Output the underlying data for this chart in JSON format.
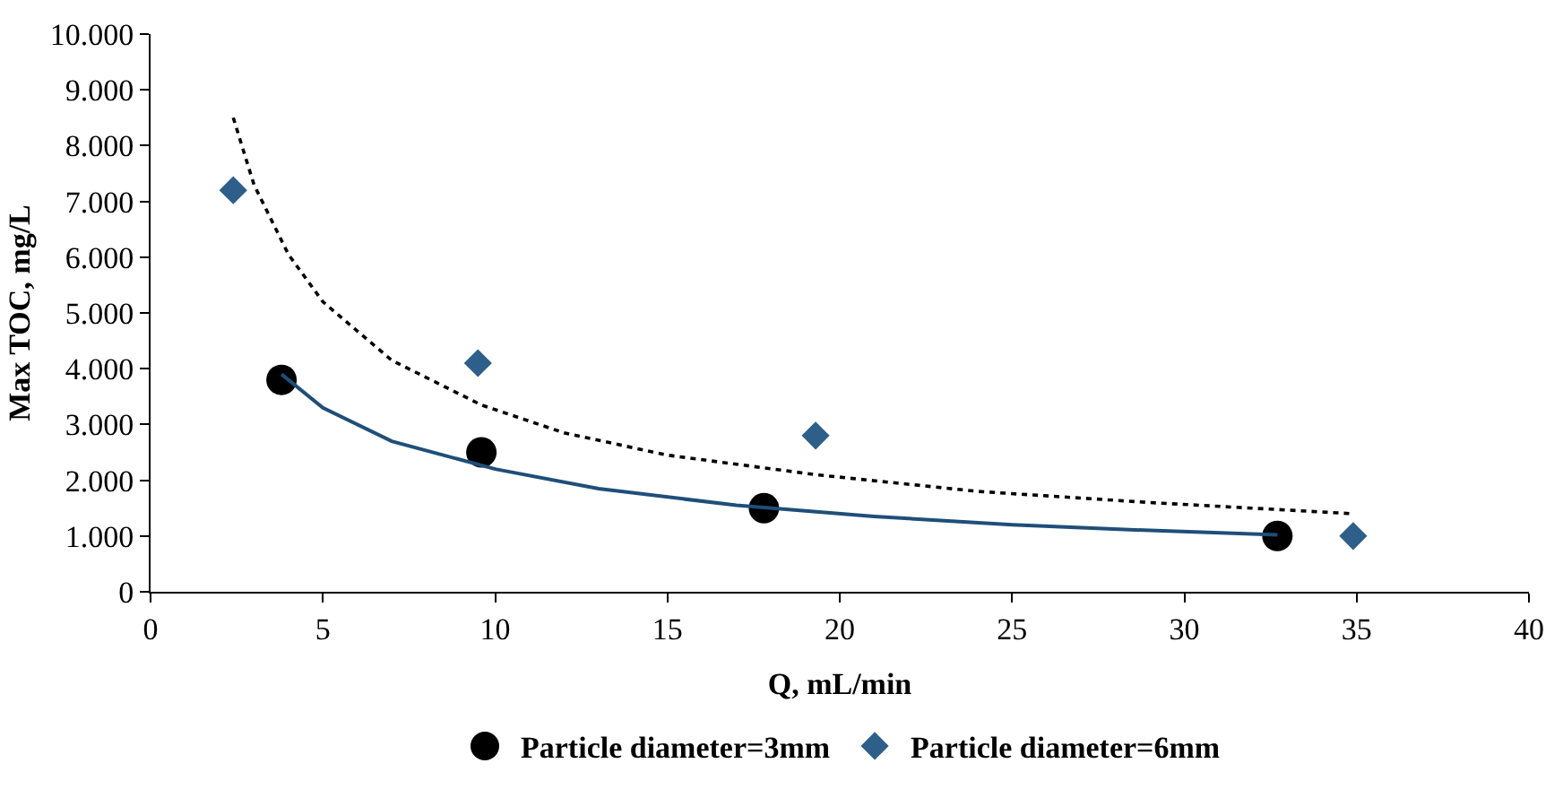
{
  "chart_data": {
    "type": "scatter",
    "xlabel": "Q, mL/min",
    "ylabel": "Max TOC, mg/L",
    "xlim": [
      0,
      40
    ],
    "xticks": [
      0,
      5,
      10,
      15,
      20,
      25,
      30,
      35,
      40
    ],
    "ylim": [
      0,
      10000
    ],
    "yticks": [
      0,
      {
        "value": 1000,
        "label": "1.000"
      },
      {
        "value": 2000,
        "label": "2.000"
      },
      {
        "value": 3000,
        "label": "3.000"
      },
      {
        "value": 4000,
        "label": "4.000"
      },
      {
        "value": 5000,
        "label": "5.000"
      },
      {
        "value": 6000,
        "label": "6.000"
      },
      {
        "value": 7000,
        "label": "7.000"
      },
      {
        "value": 8000,
        "label": "8.000"
      },
      {
        "value": 9000,
        "label": "9.000"
      },
      {
        "value": 10000,
        "label": "10.000"
      }
    ],
    "legend": "bottom",
    "series": [
      {
        "name": "Particle diameter=3mm",
        "marker": "circle",
        "color": "#000000",
        "x": [
          3.8,
          9.6,
          17.8,
          32.7
        ],
        "values": [
          3800,
          2500,
          1500,
          1000
        ]
      },
      {
        "name": "Particle diameter=6mm",
        "marker": "diamond",
        "color": "#2e5f8a",
        "x": [
          2.4,
          9.5,
          19.3,
          34.9
        ],
        "values": [
          7200,
          4100,
          2800,
          1000
        ]
      },
      {
        "type": "line",
        "line_style": "solid",
        "color": "#1f4e79",
        "x": [
          3.8,
          5,
          7,
          10,
          13,
          17,
          21,
          25,
          29,
          32.7
        ],
        "values": [
          3900,
          3300,
          2700,
          2200,
          1850,
          1550,
          1350,
          1200,
          1100,
          1020
        ]
      },
      {
        "type": "line",
        "line_style": "dotted",
        "color": "#000000",
        "x": [
          2.4,
          3,
          4,
          5,
          7,
          9.6,
          12,
          15,
          19.3,
          24,
          29,
          34.9
        ],
        "values": [
          8500,
          7300,
          6050,
          5200,
          4150,
          3350,
          2850,
          2450,
          2100,
          1800,
          1600,
          1400
        ]
      }
    ]
  }
}
